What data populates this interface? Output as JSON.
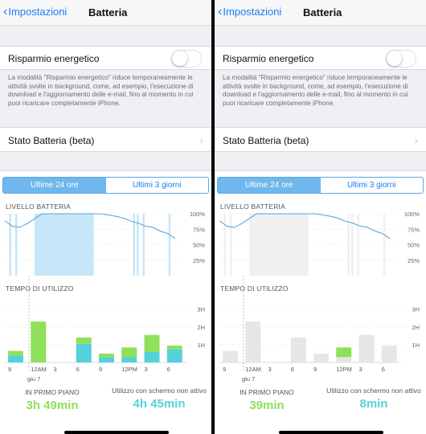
{
  "nav": {
    "back_label": "Impostazioni",
    "title": "Batteria"
  },
  "saver": {
    "label": "Risparmio energetico",
    "enabled": false,
    "footnote": "La modalità \"Risparmio energetico\" riduce temporaneamente le attività svolte in background, come, ad esempio, l'esecuzione di download e l'aggiornamento delle e-mail, fino al momento in cui puoi ricaricare completamente iPhone."
  },
  "stato": {
    "label": "Stato Batteria (beta)"
  },
  "tabs": [
    "Ultime 24 ore",
    "Ultimi 3 giorni"
  ],
  "level_title": "LIVELLO BATTERIA",
  "usage_title": "TEMPO DI UTILIZZO",
  "level_ticks": [
    "100%",
    "75%",
    "50%",
    "25%"
  ],
  "usage_ticks": [
    "3H",
    "2H",
    "1H"
  ],
  "x_labels": [
    "9",
    "12AM",
    "3",
    "6",
    "9",
    "12PM",
    "3",
    "6"
  ],
  "date_label": "giu 7",
  "colors": {
    "accent": "#1a7cf5",
    "screen_on": "#8fe05a",
    "screen_off": "#56d1d9",
    "level_line": "#4aa3dc",
    "charging": "#c6e6f8"
  },
  "panels": [
    {
      "id": "left",
      "fg_label": "IN PRIMO PIANO",
      "fg_value": "3h 49min",
      "bg_label": "Utilizzo con schermo non attivo",
      "bg_value": "4h 45min"
    },
    {
      "id": "right",
      "fg_label": "IN PRIMO PIANO",
      "fg_value": "39min",
      "bg_label": "Utilizzo con schermo non attivo",
      "bg_value": "8min"
    }
  ],
  "chart_data": [
    {
      "type": "area",
      "title": "LIVELLO BATTERIA",
      "ylabel": "",
      "ylim": [
        0,
        100
      ],
      "yticks": [
        "100%",
        "75%",
        "50%",
        "25%"
      ],
      "x": [
        0,
        1,
        2,
        3,
        4,
        5,
        6,
        7,
        8,
        9,
        10,
        11,
        12,
        13,
        14,
        15,
        16,
        17,
        18,
        19,
        20,
        21,
        22,
        23
      ],
      "values": [
        89,
        80,
        78,
        84,
        92,
        100,
        100,
        100,
        100,
        100,
        100,
        100,
        100,
        100,
        98,
        96,
        93,
        88,
        85,
        80,
        78,
        72,
        68,
        60
      ],
      "charging_periods": [
        [
          4,
          12
        ]
      ]
    },
    {
      "type": "bar",
      "title": "TEMPO DI UTILIZZO",
      "ylabel": "",
      "yticks": [
        "3H",
        "2H",
        "1H"
      ],
      "ylim": [
        0,
        3.3
      ],
      "categories": [
        "9",
        "12AM",
        "3",
        "6",
        "9",
        "12PM",
        "3",
        "6"
      ],
      "series": [
        {
          "name": "IN PRIMO PIANO",
          "values": [
            0.25,
            2.3,
            0,
            0.35,
            0.2,
            0.55,
            0.95,
            0.2
          ]
        },
        {
          "name": "Utilizzo con schermo non attivo",
          "values": [
            0.4,
            0,
            0,
            1.05,
            0.3,
            0.3,
            0.6,
            0.75
          ]
        }
      ]
    }
  ]
}
